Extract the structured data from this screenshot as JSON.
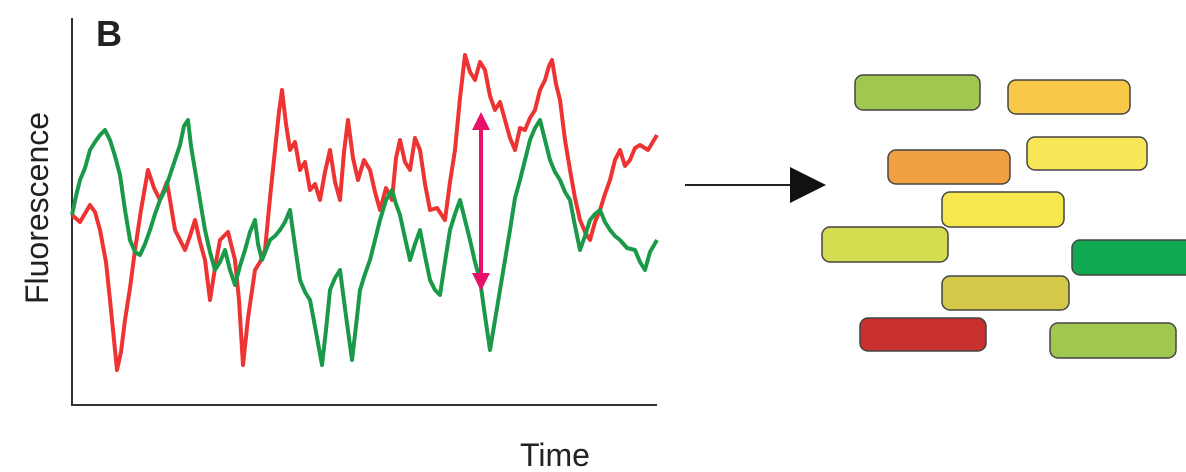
{
  "panel_label": "B",
  "y_axis_label": "Fluorescence",
  "x_axis_label": "Time"
}
